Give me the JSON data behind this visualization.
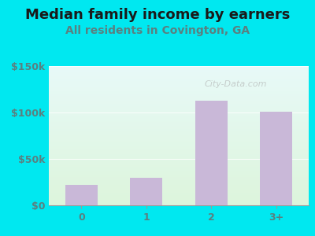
{
  "title": "Median family income by earners",
  "subtitle": "All residents in Covington, GA",
  "categories": [
    "0",
    "1",
    "2",
    "3+"
  ],
  "values": [
    22000,
    30000,
    113000,
    101000
  ],
  "bar_color": "#c9b8d8",
  "outer_bg_color": "#00e8f0",
  "plot_bg_top": "#e8faf8",
  "plot_bg_bottom": "#ddf5dc",
  "title_color": "#1a1a1a",
  "subtitle_color": "#5a8080",
  "tick_color": "#5a8080",
  "ylim": [
    0,
    150000
  ],
  "yticks": [
    0,
    50000,
    100000,
    150000
  ],
  "ytick_labels": [
    "$0",
    "$50k",
    "$100k",
    "$150k"
  ],
  "watermark": "City-Data.com",
  "title_fontsize": 13,
  "subtitle_fontsize": 10,
  "tick_fontsize": 9
}
